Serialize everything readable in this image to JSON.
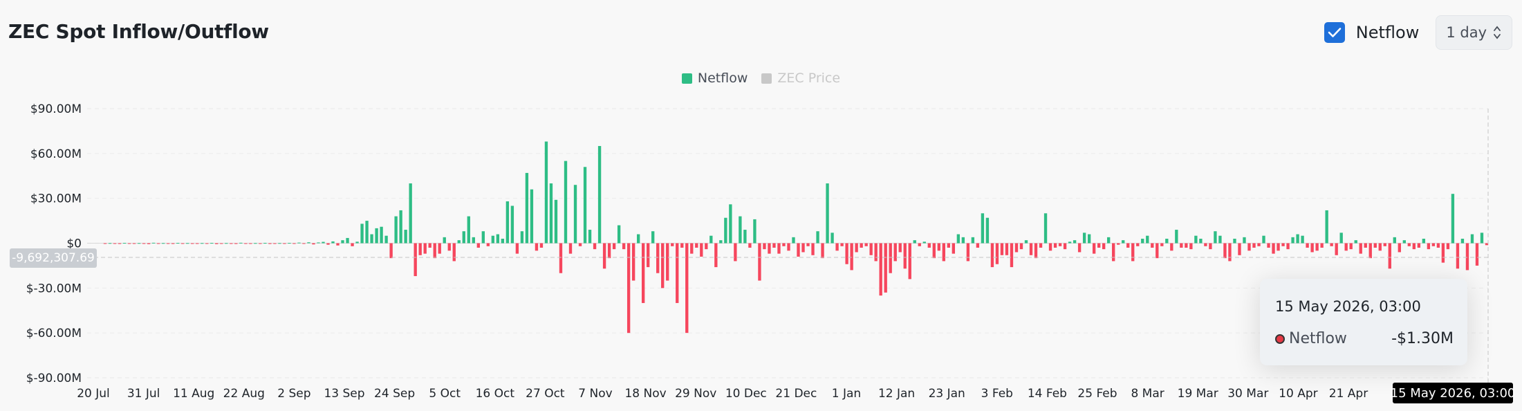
{
  "header": {
    "title": "ZEC Spot Inflow/Outflow",
    "netflow_toggle_label": "Netflow",
    "interval_select": "1 day"
  },
  "colors": {
    "positive": "#2ebd85",
    "negative": "#f6465d",
    "price_legend": "#c8c8c8",
    "checkbox": "#1e6fd9"
  },
  "legend": [
    {
      "label": "Netflow",
      "color": "#2ebd85",
      "active": true
    },
    {
      "label": "ZEC Price",
      "color": "#c8c8c8",
      "active": false
    }
  ],
  "tooltip": {
    "date": "15 May 2026, 03:00",
    "series": "Netflow",
    "value": "-$1.30M"
  },
  "crosshair": {
    "y_value": "-9,692,307.69",
    "x_value": "15 May 2026, 03:00"
  },
  "chart_data": {
    "type": "bar",
    "title": "ZEC Spot Inflow/Outflow",
    "xlabel": "",
    "ylabel": "",
    "ylim": [
      -90,
      90
    ],
    "y_unit": "USD millions",
    "y_ticks": [
      "$90.00M",
      "$60.00M",
      "$30.00M",
      "$0",
      "$-30.00M",
      "$-60.00M",
      "$-90.00M"
    ],
    "y_tick_values": [
      90,
      60,
      30,
      0,
      -30,
      -60,
      -90
    ],
    "x_ticks": [
      "20 Jul",
      "31 Jul",
      "11 Aug",
      "22 Aug",
      "2 Sep",
      "13 Sep",
      "24 Sep",
      "5 Oct",
      "16 Oct",
      "27 Oct",
      "7 Nov",
      "18 Nov",
      "29 Nov",
      "10 Dec",
      "21 Dec",
      "1 Jan",
      "12 Jan",
      "23 Jan",
      "3 Feb",
      "14 Feb",
      "25 Feb",
      "8 Mar",
      "19 Mar",
      "30 Mar",
      "10 Apr",
      "21 Apr"
    ],
    "x_start": "20 Jul",
    "x_end": "15 May",
    "legend_position": "top-center",
    "grid": true,
    "series": [
      {
        "name": "Netflow",
        "values": [
          -0.3,
          0.1,
          -0.2,
          -0.5,
          0.2,
          -0.4,
          -0.3,
          0.1,
          -0.2,
          -0.6,
          0.3,
          -0.2,
          0.1,
          -0.3,
          -0.5,
          0.2,
          -0.1,
          0.1,
          -0.2,
          -0.3,
          0.1,
          -0.4,
          0.2,
          -0.6,
          -0.3,
          0.1,
          -0.2,
          -0.5,
          0.3,
          -0.4,
          -0.2,
          0.1,
          -0.3,
          0.2,
          -0.5,
          -0.1,
          0.1,
          -0.3,
          0.2,
          -0.2,
          0.4,
          -0.3,
          0.6,
          -0.8,
          0.5,
          0.9,
          -1.0,
          1.2,
          -1.5,
          2.0,
          3.5,
          -2.0,
          1.0,
          13.0,
          15.0,
          6.0,
          10.0,
          11.0,
          5.0,
          -10.0,
          18.0,
          22.0,
          9.0,
          40.0,
          -22.0,
          -8.0,
          -7.0,
          -3.0,
          -10.0,
          -7.0,
          4.0,
          -5.0,
          -12.0,
          2.0,
          8.0,
          18.0,
          4.0,
          -3.0,
          8.0,
          -2.0,
          5.0,
          6.0,
          3.0,
          28.0,
          25.0,
          -7.0,
          8.0,
          47.0,
          36.0,
          -5.0,
          -3.0,
          68.0,
          40.0,
          29.0,
          -20.0,
          55.0,
          -7.0,
          39.0,
          -2.0,
          51.0,
          9.0,
          -4.0,
          65.0,
          -17.0,
          -10.0,
          -4.0,
          12.0,
          -4.0,
          -60.0,
          -25.0,
          6.0,
          -40.0,
          -16.0,
          8.0,
          -20.0,
          -30.0,
          -25.0,
          -2.0,
          -40.0,
          -3.0,
          -60.0,
          -7.0,
          -3.0,
          -9.0,
          -4.0,
          5.0,
          -16.0,
          2.0,
          17.0,
          26.0,
          -12.0,
          18.0,
          9.0,
          -3.0,
          16.0,
          -25.0,
          -4.0,
          -7.0,
          -3.0,
          -7.0,
          -2.0,
          -5.0,
          4.0,
          -9.0,
          -6.0,
          -2.0,
          -8.0,
          8.0,
          -10.0,
          40.0,
          7.0,
          -5.0,
          -2.0,
          -14.0,
          -18.0,
          -6.0,
          -3.0,
          -2.0,
          -8.0,
          -12.0,
          -35.0,
          -33.0,
          -20.0,
          -12.0,
          -6.0,
          -17.0,
          -24.0,
          2.0,
          -2.0,
          1.0,
          -3.0,
          -10.0,
          -5.0,
          -12.0,
          -3.0,
          -7.0,
          6.0,
          4.0,
          -12.0,
          4.0,
          -3.0,
          20.0,
          17.0,
          -16.0,
          -14.0,
          -8.0,
          -8.0,
          -16.0,
          -6.0,
          -4.0,
          2.0,
          -8.0,
          -10.0,
          -3.0,
          20.0,
          -5.0,
          -3.0,
          -2.0,
          -4.0,
          1.0,
          2.0,
          -6.0,
          7.0,
          6.0,
          -7.0,
          -3.0,
          -4.0,
          4.0,
          -12.0,
          -1.0,
          2.0,
          -3.0,
          -12.0,
          -2.0,
          3.0,
          5.0,
          -3.0,
          -10.0,
          -2.0,
          3.0,
          -5.0,
          9.0,
          -3.0,
          -3.0,
          -4.0,
          5.0,
          3.0,
          -2.0,
          -4.0,
          8.0,
          5.0,
          -10.0,
          -12.0,
          3.0,
          -8.0,
          4.0,
          -5.0,
          -3.0,
          -2.0,
          5.0,
          -3.0,
          -7.0,
          -5.0,
          -2.0,
          -4.0,
          4.0,
          6.0,
          5.0,
          -3.0,
          -6.0,
          -5.0,
          -3.0,
          22.0,
          -2.0,
          -8.0,
          7.0,
          -5.0,
          -4.0,
          2.0,
          -7.0,
          -3.0,
          -10.0,
          -3.0,
          -5.0,
          -2.0,
          -17.0,
          4.0,
          -6.0,
          2.0,
          -2.0,
          -4.0,
          -3.0,
          3.0,
          -4.0,
          -2.0,
          -3.0,
          -13.0,
          -4.0,
          33.0,
          -17.0,
          3.0,
          -18.0,
          6.0,
          -15.0,
          7.0,
          -1.3
        ]
      }
    ]
  }
}
